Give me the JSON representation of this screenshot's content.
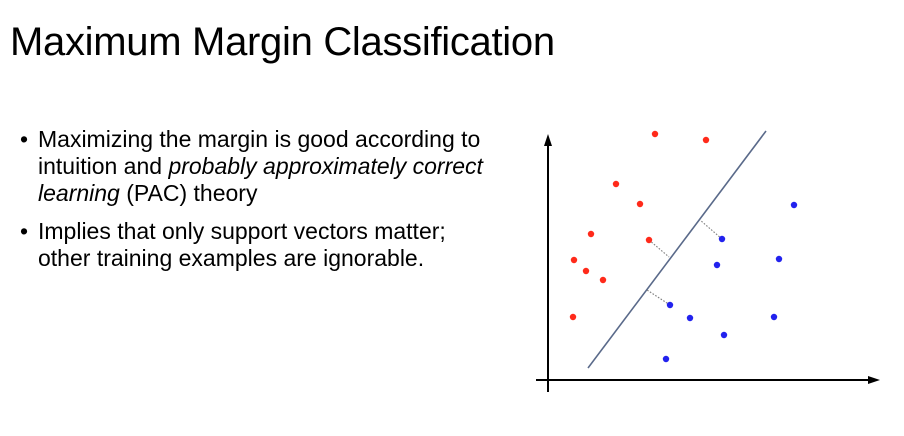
{
  "slide": {
    "title": "Maximum Margin Classification"
  },
  "bullets": [
    {
      "bullet_char": "•",
      "segments": [
        {
          "text": "Maximizing the margin is good according to intuition and ",
          "style": "normal"
        },
        {
          "text": "probably approximately correct learning",
          "style": "italic"
        },
        {
          "text": " (PAC) theory",
          "style": "normal"
        }
      ]
    },
    {
      "bullet_char": "•",
      "segments": [
        {
          "text": "Implies that only support vectors matter; other training examples are ignorable.",
          "style": "normal"
        }
      ]
    }
  ],
  "figure": {
    "colors": {
      "class_a": "#ff2a1a",
      "class_b": "#2222ee",
      "decision_boundary": "#5a6a8a",
      "margin_lines": "#7f7f7f",
      "axes": "#000000"
    },
    "classes": [
      "class_a",
      "class_b"
    ],
    "support_vector_count": 3,
    "margin_line_style": "dotted",
    "axes_arrows": true
  }
}
